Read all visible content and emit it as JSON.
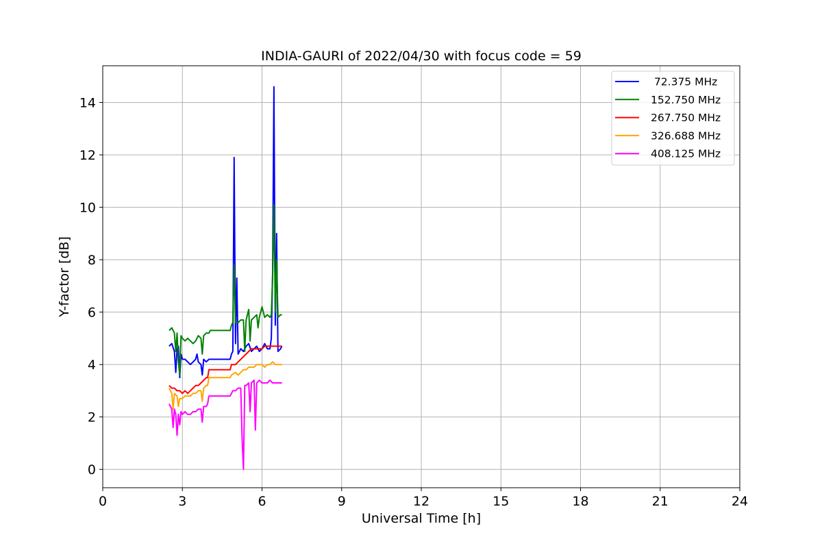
{
  "chart_data": {
    "type": "line",
    "title": "INDIA-GAURI of 2022/04/30 with focus code = 59",
    "xlabel": "Universal Time [h]",
    "ylabel": "Y-factor [dB]",
    "xlim": [
      0,
      24
    ],
    "ylim": [
      -0.7,
      15.4
    ],
    "xticks": [
      0,
      3,
      6,
      9,
      12,
      15,
      18,
      21,
      24
    ],
    "yticks": [
      0,
      2,
      4,
      6,
      8,
      10,
      12,
      14
    ],
    "grid": true,
    "legend_position": "top-right",
    "series": [
      {
        "name": " 72.375 MHz",
        "color": "#0000ff",
        "points": [
          [
            2.5,
            4.7
          ],
          [
            2.6,
            4.8
          ],
          [
            2.7,
            4.5
          ],
          [
            2.75,
            3.7
          ],
          [
            2.8,
            4.6
          ],
          [
            2.85,
            4.7
          ],
          [
            2.9,
            3.5
          ],
          [
            2.95,
            4.4
          ],
          [
            3.0,
            4.2
          ],
          [
            3.1,
            4.2
          ],
          [
            3.2,
            4.1
          ],
          [
            3.3,
            4.0
          ],
          [
            3.4,
            4.1
          ],
          [
            3.5,
            4.2
          ],
          [
            3.55,
            4.4
          ],
          [
            3.6,
            4.1
          ],
          [
            3.7,
            4.0
          ],
          [
            3.75,
            3.6
          ],
          [
            3.8,
            4.2
          ],
          [
            3.9,
            4.1
          ],
          [
            4.0,
            4.2
          ],
          [
            4.8,
            4.2
          ],
          [
            4.85,
            4.4
          ],
          [
            4.9,
            4.5
          ],
          [
            4.95,
            11.9
          ],
          [
            5.0,
            4.8
          ],
          [
            5.05,
            7.3
          ],
          [
            5.1,
            4.4
          ],
          [
            5.2,
            4.6
          ],
          [
            5.3,
            4.5
          ],
          [
            5.4,
            4.7
          ],
          [
            5.5,
            4.8
          ],
          [
            5.6,
            4.5
          ],
          [
            5.7,
            4.6
          ],
          [
            5.8,
            4.7
          ],
          [
            5.9,
            4.5
          ],
          [
            6.0,
            4.6
          ],
          [
            6.1,
            4.8
          ],
          [
            6.2,
            4.6
          ],
          [
            6.3,
            4.6
          ],
          [
            6.35,
            5.0
          ],
          [
            6.4,
            7.5
          ],
          [
            6.45,
            14.6
          ],
          [
            6.5,
            5.5
          ],
          [
            6.55,
            9.0
          ],
          [
            6.6,
            4.5
          ],
          [
            6.7,
            4.6
          ],
          [
            6.75,
            4.7
          ]
        ]
      },
      {
        "name": "152.750 MHz",
        "color": "#008000",
        "points": [
          [
            2.5,
            5.3
          ],
          [
            2.6,
            5.4
          ],
          [
            2.7,
            5.2
          ],
          [
            2.75,
            4.5
          ],
          [
            2.8,
            5.2
          ],
          [
            2.85,
            4.1
          ],
          [
            2.9,
            3.6
          ],
          [
            2.95,
            5.1
          ],
          [
            3.0,
            5.0
          ],
          [
            3.1,
            4.9
          ],
          [
            3.2,
            5.0
          ],
          [
            3.3,
            4.9
          ],
          [
            3.4,
            4.8
          ],
          [
            3.5,
            4.9
          ],
          [
            3.6,
            5.1
          ],
          [
            3.7,
            5.0
          ],
          [
            3.75,
            4.4
          ],
          [
            3.8,
            5.1
          ],
          [
            3.9,
            5.2
          ],
          [
            4.0,
            5.2
          ],
          [
            4.05,
            5.3
          ],
          [
            4.8,
            5.3
          ],
          [
            4.85,
            5.5
          ],
          [
            4.9,
            5.6
          ],
          [
            4.95,
            7.8
          ],
          [
            5.0,
            5.6
          ],
          [
            5.1,
            5.6
          ],
          [
            5.2,
            5.7
          ],
          [
            5.3,
            5.7
          ],
          [
            5.35,
            4.5
          ],
          [
            5.4,
            5.7
          ],
          [
            5.5,
            6.1
          ],
          [
            5.55,
            4.9
          ],
          [
            5.6,
            5.7
          ],
          [
            5.7,
            5.8
          ],
          [
            5.8,
            5.9
          ],
          [
            5.85,
            5.4
          ],
          [
            5.9,
            5.8
          ],
          [
            6.0,
            6.2
          ],
          [
            6.1,
            5.8
          ],
          [
            6.2,
            5.9
          ],
          [
            6.3,
            5.8
          ],
          [
            6.35,
            5.9
          ],
          [
            6.4,
            7.4
          ],
          [
            6.45,
            10.1
          ],
          [
            6.5,
            6.0
          ],
          [
            6.55,
            8.0
          ],
          [
            6.6,
            5.8
          ],
          [
            6.7,
            5.9
          ],
          [
            6.75,
            5.9
          ]
        ]
      },
      {
        "name": "267.750 MHz",
        "color": "#ff0000",
        "points": [
          [
            2.5,
            3.2
          ],
          [
            2.6,
            3.1
          ],
          [
            2.7,
            3.1
          ],
          [
            2.8,
            3.0
          ],
          [
            2.9,
            3.0
          ],
          [
            3.0,
            2.9
          ],
          [
            3.1,
            3.0
          ],
          [
            3.2,
            2.9
          ],
          [
            3.3,
            3.0
          ],
          [
            3.4,
            3.1
          ],
          [
            3.5,
            3.2
          ],
          [
            3.6,
            3.2
          ],
          [
            3.7,
            3.3
          ],
          [
            3.8,
            3.4
          ],
          [
            3.9,
            3.5
          ],
          [
            3.95,
            3.5
          ],
          [
            4.0,
            3.8
          ],
          [
            4.8,
            3.8
          ],
          [
            4.85,
            4.0
          ],
          [
            5.0,
            4.0
          ],
          [
            5.1,
            4.1
          ],
          [
            5.2,
            4.2
          ],
          [
            5.3,
            4.3
          ],
          [
            5.4,
            4.4
          ],
          [
            5.5,
            4.5
          ],
          [
            5.6,
            4.6
          ],
          [
            5.7,
            4.6
          ],
          [
            5.8,
            4.6
          ],
          [
            5.9,
            4.6
          ],
          [
            6.0,
            4.6
          ],
          [
            6.1,
            4.7
          ],
          [
            6.2,
            4.7
          ],
          [
            6.3,
            4.7
          ],
          [
            6.4,
            4.7
          ],
          [
            6.5,
            4.7
          ],
          [
            6.6,
            4.7
          ],
          [
            6.7,
            4.7
          ],
          [
            6.75,
            4.7
          ]
        ]
      },
      {
        "name": "326.688 MHz",
        "color": "#ffa500",
        "points": [
          [
            2.5,
            3.1
          ],
          [
            2.6,
            2.9
          ],
          [
            2.65,
            2.3
          ],
          [
            2.7,
            2.9
          ],
          [
            2.8,
            2.8
          ],
          [
            2.85,
            2.4
          ],
          [
            2.9,
            2.7
          ],
          [
            3.0,
            2.7
          ],
          [
            3.1,
            2.8
          ],
          [
            3.2,
            2.8
          ],
          [
            3.3,
            2.8
          ],
          [
            3.4,
            2.9
          ],
          [
            3.5,
            2.9
          ],
          [
            3.6,
            3.0
          ],
          [
            3.7,
            3.0
          ],
          [
            3.75,
            2.6
          ],
          [
            3.8,
            3.1
          ],
          [
            3.9,
            3.2
          ],
          [
            3.95,
            3.2
          ],
          [
            4.0,
            3.5
          ],
          [
            4.8,
            3.5
          ],
          [
            4.85,
            3.6
          ],
          [
            5.0,
            3.7
          ],
          [
            5.1,
            3.6
          ],
          [
            5.2,
            3.7
          ],
          [
            5.3,
            3.8
          ],
          [
            5.4,
            3.8
          ],
          [
            5.5,
            3.9
          ],
          [
            5.6,
            3.9
          ],
          [
            5.7,
            3.9
          ],
          [
            5.8,
            4.0
          ],
          [
            5.9,
            4.0
          ],
          [
            6.0,
            4.0
          ],
          [
            6.1,
            3.9
          ],
          [
            6.2,
            4.0
          ],
          [
            6.3,
            4.0
          ],
          [
            6.4,
            4.1
          ],
          [
            6.5,
            4.0
          ],
          [
            6.6,
            4.0
          ],
          [
            6.7,
            4.0
          ],
          [
            6.75,
            4.0
          ]
        ]
      },
      {
        "name": "408.125 MHz",
        "color": "#ff00ff",
        "points": [
          [
            2.5,
            2.5
          ],
          [
            2.55,
            2.4
          ],
          [
            2.6,
            2.3
          ],
          [
            2.65,
            1.6
          ],
          [
            2.7,
            2.3
          ],
          [
            2.75,
            2.1
          ],
          [
            2.8,
            1.3
          ],
          [
            2.85,
            2.1
          ],
          [
            2.9,
            1.7
          ],
          [
            2.95,
            2.2
          ],
          [
            3.0,
            2.1
          ],
          [
            3.1,
            2.2
          ],
          [
            3.2,
            2.1
          ],
          [
            3.3,
            2.1
          ],
          [
            3.4,
            2.2
          ],
          [
            3.5,
            2.2
          ],
          [
            3.6,
            2.3
          ],
          [
            3.7,
            2.3
          ],
          [
            3.75,
            1.8
          ],
          [
            3.8,
            2.4
          ],
          [
            3.9,
            2.4
          ],
          [
            3.95,
            2.5
          ],
          [
            4.0,
            2.8
          ],
          [
            4.8,
            2.8
          ],
          [
            4.85,
            2.9
          ],
          [
            4.9,
            3.0
          ],
          [
            5.0,
            3.0
          ],
          [
            5.1,
            3.1
          ],
          [
            5.2,
            3.1
          ],
          [
            5.25,
            1.2
          ],
          [
            5.3,
            0.0
          ],
          [
            5.35,
            3.2
          ],
          [
            5.4,
            3.2
          ],
          [
            5.5,
            3.3
          ],
          [
            5.55,
            2.2
          ],
          [
            5.6,
            3.3
          ],
          [
            5.7,
            3.4
          ],
          [
            5.75,
            1.5
          ],
          [
            5.8,
            3.3
          ],
          [
            5.9,
            3.4
          ],
          [
            6.0,
            3.3
          ],
          [
            6.1,
            3.3
          ],
          [
            6.2,
            3.3
          ],
          [
            6.3,
            3.4
          ],
          [
            6.4,
            3.3
          ],
          [
            6.5,
            3.3
          ],
          [
            6.6,
            3.3
          ],
          [
            6.7,
            3.3
          ],
          [
            6.75,
            3.3
          ]
        ]
      }
    ]
  }
}
